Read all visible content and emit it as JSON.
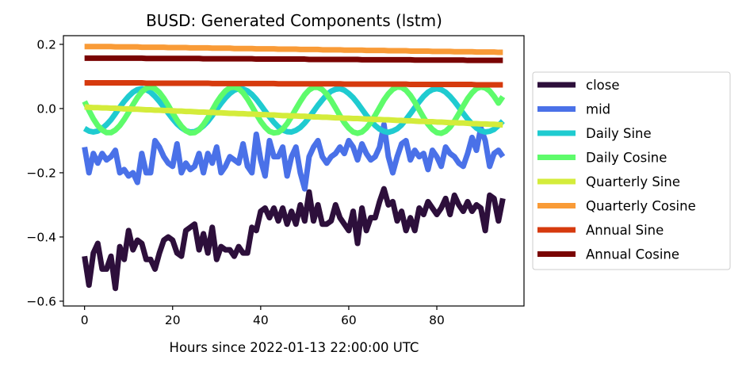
{
  "chart_data": {
    "type": "line",
    "title": "BUSD: Generated Components (lstm)",
    "xlabel": "Hours since 2022-01-13 22:00:00 UTC",
    "ylabel": "",
    "xlim": [
      -4.8,
      99.8
    ],
    "ylim": [
      -0.615,
      0.227
    ],
    "xticks": [
      0,
      20,
      40,
      60,
      80
    ],
    "xtick_labels": [
      "0",
      "20",
      "40",
      "60",
      "80"
    ],
    "yticks": [
      -0.6,
      -0.4,
      -0.2,
      0.0,
      0.2
    ],
    "ytick_labels": [
      "−0.6",
      "−0.4",
      "−0.2",
      "0.0",
      "0.2"
    ],
    "grid": false,
    "legend_position": "outside-right",
    "x": [
      0,
      1,
      2,
      3,
      4,
      5,
      6,
      7,
      8,
      9,
      10,
      11,
      12,
      13,
      14,
      15,
      16,
      17,
      18,
      19,
      20,
      21,
      22,
      23,
      24,
      25,
      26,
      27,
      28,
      29,
      30,
      31,
      32,
      33,
      34,
      35,
      36,
      37,
      38,
      39,
      40,
      41,
      42,
      43,
      44,
      45,
      46,
      47,
      48,
      49,
      50,
      51,
      52,
      53,
      54,
      55,
      56,
      57,
      58,
      59,
      60,
      61,
      62,
      63,
      64,
      65,
      66,
      67,
      68,
      69,
      70,
      71,
      72,
      73,
      74,
      75,
      76,
      77,
      78,
      79,
      80,
      81,
      82,
      83,
      84,
      85,
      86,
      87,
      88,
      89,
      90,
      91,
      92,
      93,
      94,
      95
    ],
    "series": [
      {
        "name": "close",
        "color": "#2d0f3b",
        "values": [
          -0.46,
          -0.55,
          -0.45,
          -0.42,
          -0.5,
          -0.5,
          -0.46,
          -0.56,
          -0.43,
          -0.47,
          -0.38,
          -0.44,
          -0.41,
          -0.42,
          -0.47,
          -0.47,
          -0.5,
          -0.45,
          -0.41,
          -0.4,
          -0.41,
          -0.45,
          -0.46,
          -0.38,
          -0.37,
          -0.36,
          -0.44,
          -0.39,
          -0.45,
          -0.37,
          -0.47,
          -0.43,
          -0.44,
          -0.44,
          -0.46,
          -0.43,
          -0.45,
          -0.45,
          -0.37,
          -0.38,
          -0.32,
          -0.31,
          -0.34,
          -0.31,
          -0.35,
          -0.31,
          -0.36,
          -0.32,
          -0.36,
          -0.3,
          -0.35,
          -0.26,
          -0.35,
          -0.3,
          -0.36,
          -0.36,
          -0.35,
          -0.3,
          -0.34,
          -0.36,
          -0.38,
          -0.32,
          -0.42,
          -0.31,
          -0.38,
          -0.34,
          -0.34,
          -0.29,
          -0.25,
          -0.3,
          -0.29,
          -0.35,
          -0.32,
          -0.38,
          -0.34,
          -0.38,
          -0.31,
          -0.33,
          -0.29,
          -0.31,
          -0.33,
          -0.31,
          -0.28,
          -0.33,
          -0.27,
          -0.3,
          -0.32,
          -0.29,
          -0.32,
          -0.3,
          -0.31,
          -0.38,
          -0.27,
          -0.28,
          -0.35,
          -0.28
        ]
      },
      {
        "name": "mid",
        "color": "#4a71e8",
        "values": [
          -0.12,
          -0.2,
          -0.14,
          -0.17,
          -0.14,
          -0.16,
          -0.15,
          -0.13,
          -0.2,
          -0.19,
          -0.21,
          -0.2,
          -0.23,
          -0.14,
          -0.2,
          -0.2,
          -0.1,
          -0.12,
          -0.15,
          -0.17,
          -0.18,
          -0.11,
          -0.2,
          -0.17,
          -0.19,
          -0.18,
          -0.14,
          -0.2,
          -0.14,
          -0.17,
          -0.12,
          -0.2,
          -0.18,
          -0.15,
          -0.16,
          -0.17,
          -0.11,
          -0.18,
          -0.2,
          -0.08,
          -0.16,
          -0.21,
          -0.1,
          -0.15,
          -0.15,
          -0.12,
          -0.21,
          -0.15,
          -0.12,
          -0.2,
          -0.25,
          -0.15,
          -0.12,
          -0.1,
          -0.15,
          -0.17,
          -0.15,
          -0.14,
          -0.12,
          -0.14,
          -0.1,
          -0.12,
          -0.16,
          -0.11,
          -0.14,
          -0.16,
          -0.15,
          -0.12,
          -0.05,
          -0.15,
          -0.2,
          -0.15,
          -0.11,
          -0.1,
          -0.16,
          -0.13,
          -0.15,
          -0.14,
          -0.19,
          -0.13,
          -0.15,
          -0.18,
          -0.12,
          -0.14,
          -0.15,
          -0.17,
          -0.18,
          -0.14,
          -0.09,
          -0.13,
          -0.06,
          -0.1,
          -0.18,
          -0.14,
          -0.13,
          -0.15
        ]
      },
      {
        "name": "Daily Sine",
        "color": "#1fcbd0",
        "values": [
          -0.062,
          -0.07,
          -0.073,
          -0.07,
          -0.062,
          -0.05,
          -0.035,
          -0.016,
          0.004,
          0.022,
          0.038,
          0.051,
          0.059,
          0.062,
          0.059,
          0.051,
          0.038,
          0.022,
          0.004,
          -0.014,
          -0.032,
          -0.048,
          -0.06,
          -0.069,
          -0.073,
          -0.072,
          -0.065,
          -0.054,
          -0.04,
          -0.022,
          -0.003,
          0.016,
          0.033,
          0.047,
          0.057,
          0.062,
          0.061,
          0.055,
          0.044,
          0.029,
          0.011,
          -0.008,
          -0.026,
          -0.043,
          -0.057,
          -0.067,
          -0.072,
          -0.073,
          -0.068,
          -0.059,
          -0.045,
          -0.028,
          -0.009,
          0.01,
          0.027,
          0.043,
          0.054,
          0.06,
          0.062,
          0.057,
          0.047,
          0.034,
          0.017,
          -0.002,
          -0.021,
          -0.038,
          -0.053,
          -0.064,
          -0.071,
          -0.074,
          -0.07,
          -0.063,
          -0.051,
          -0.034,
          -0.016,
          0.003,
          0.021,
          0.038,
          0.051,
          0.059,
          0.062,
          0.059,
          0.051,
          0.038,
          0.022,
          0.004,
          -0.015,
          -0.033,
          -0.048,
          -0.061,
          -0.069,
          -0.073,
          -0.071,
          -0.065,
          -0.053,
          -0.039
        ]
      },
      {
        "name": "Daily Cosine",
        "color": "#5efb6b",
        "values": [
          0.022,
          -0.006,
          -0.032,
          -0.053,
          -0.067,
          -0.075,
          -0.075,
          -0.067,
          -0.053,
          -0.034,
          -0.012,
          0.012,
          0.034,
          0.052,
          0.063,
          0.067,
          0.062,
          0.05,
          0.032,
          0.01,
          -0.014,
          -0.036,
          -0.055,
          -0.069,
          -0.076,
          -0.075,
          -0.066,
          -0.05,
          -0.029,
          -0.005,
          0.019,
          0.039,
          0.055,
          0.065,
          0.067,
          0.062,
          0.049,
          0.03,
          0.007,
          -0.017,
          -0.04,
          -0.058,
          -0.071,
          -0.076,
          -0.074,
          -0.064,
          -0.047,
          -0.025,
          -0.001,
          0.022,
          0.043,
          0.058,
          0.066,
          0.066,
          0.059,
          0.045,
          0.025,
          0.002,
          -0.022,
          -0.044,
          -0.061,
          -0.073,
          -0.077,
          -0.073,
          -0.061,
          -0.043,
          -0.021,
          0.003,
          0.027,
          0.046,
          0.06,
          0.067,
          0.066,
          0.057,
          0.041,
          0.02,
          -0.004,
          -0.028,
          -0.049,
          -0.065,
          -0.075,
          -0.077,
          -0.071,
          -0.058,
          -0.039,
          -0.016,
          0.008,
          0.031,
          0.049,
          0.062,
          0.067,
          0.064,
          0.055,
          0.038,
          0.017,
          0.037
        ]
      },
      {
        "name": "Quarterly Sine",
        "color": "#d4ec3b",
        "values": [
          0.005,
          0.004,
          0.003,
          0.003,
          0.002,
          0.002,
          0.001,
          0.001,
          0.0,
          -0.001,
          -0.001,
          -0.002,
          -0.002,
          -0.003,
          -0.004,
          -0.004,
          -0.005,
          -0.005,
          -0.006,
          -0.006,
          -0.007,
          -0.008,
          -0.008,
          -0.009,
          -0.009,
          -0.01,
          -0.011,
          -0.011,
          -0.012,
          -0.012,
          -0.013,
          -0.013,
          -0.014,
          -0.015,
          -0.015,
          -0.016,
          -0.016,
          -0.017,
          -0.017,
          -0.018,
          -0.019,
          -0.019,
          -0.02,
          -0.02,
          -0.021,
          -0.022,
          -0.022,
          -0.023,
          -0.023,
          -0.024,
          -0.024,
          -0.025,
          -0.026,
          -0.026,
          -0.027,
          -0.027,
          -0.028,
          -0.029,
          -0.029,
          -0.03,
          -0.03,
          -0.031,
          -0.031,
          -0.032,
          -0.033,
          -0.033,
          -0.034,
          -0.034,
          -0.035,
          -0.035,
          -0.036,
          -0.037,
          -0.037,
          -0.038,
          -0.038,
          -0.039,
          -0.04,
          -0.04,
          -0.041,
          -0.041,
          -0.042,
          -0.042,
          -0.043,
          -0.044,
          -0.044,
          -0.045,
          -0.045,
          -0.046,
          -0.047,
          -0.047,
          -0.048,
          -0.048,
          -0.049,
          -0.049,
          -0.05,
          -0.051
        ]
      },
      {
        "name": "Quarterly Cosine",
        "color": "#f99b37",
        "values": [
          0.193,
          0.193,
          0.193,
          0.193,
          0.193,
          0.193,
          0.193,
          0.192,
          0.192,
          0.192,
          0.192,
          0.192,
          0.192,
          0.191,
          0.191,
          0.191,
          0.191,
          0.191,
          0.191,
          0.19,
          0.19,
          0.19,
          0.19,
          0.19,
          0.189,
          0.189,
          0.189,
          0.189,
          0.189,
          0.188,
          0.188,
          0.188,
          0.188,
          0.188,
          0.187,
          0.187,
          0.187,
          0.187,
          0.187,
          0.186,
          0.186,
          0.186,
          0.186,
          0.186,
          0.185,
          0.185,
          0.185,
          0.185,
          0.185,
          0.184,
          0.184,
          0.184,
          0.184,
          0.184,
          0.183,
          0.183,
          0.183,
          0.183,
          0.183,
          0.182,
          0.182,
          0.182,
          0.182,
          0.182,
          0.181,
          0.181,
          0.181,
          0.181,
          0.181,
          0.18,
          0.18,
          0.18,
          0.18,
          0.18,
          0.179,
          0.179,
          0.179,
          0.179,
          0.179,
          0.178,
          0.178,
          0.178,
          0.178,
          0.178,
          0.177,
          0.177,
          0.177,
          0.177,
          0.177,
          0.176,
          0.176,
          0.176,
          0.176,
          0.176,
          0.175,
          0.175
        ]
      },
      {
        "name": "Annual Sine",
        "color": "#d63a0e",
        "values": [
          0.08,
          0.08,
          0.08,
          0.08,
          0.08,
          0.08,
          0.08,
          0.08,
          0.08,
          0.08,
          0.08,
          0.08,
          0.08,
          0.08,
          0.079,
          0.079,
          0.079,
          0.079,
          0.079,
          0.079,
          0.079,
          0.079,
          0.079,
          0.079,
          0.079,
          0.079,
          0.079,
          0.079,
          0.079,
          0.078,
          0.078,
          0.078,
          0.078,
          0.078,
          0.078,
          0.078,
          0.078,
          0.078,
          0.078,
          0.078,
          0.078,
          0.078,
          0.078,
          0.078,
          0.077,
          0.077,
          0.077,
          0.077,
          0.077,
          0.077,
          0.077,
          0.077,
          0.077,
          0.077,
          0.077,
          0.077,
          0.077,
          0.077,
          0.077,
          0.076,
          0.076,
          0.076,
          0.076,
          0.076,
          0.076,
          0.076,
          0.076,
          0.076,
          0.076,
          0.076,
          0.076,
          0.076,
          0.076,
          0.076,
          0.075,
          0.075,
          0.075,
          0.075,
          0.075,
          0.075,
          0.075,
          0.075,
          0.075,
          0.075,
          0.075,
          0.075,
          0.075,
          0.075,
          0.075,
          0.074,
          0.074,
          0.074,
          0.074,
          0.074,
          0.074,
          0.074
        ]
      },
      {
        "name": "Annual Cosine",
        "color": "#7a0403",
        "values": [
          0.157,
          0.157,
          0.157,
          0.157,
          0.157,
          0.157,
          0.157,
          0.157,
          0.157,
          0.157,
          0.157,
          0.157,
          0.157,
          0.157,
          0.156,
          0.156,
          0.156,
          0.156,
          0.156,
          0.156,
          0.156,
          0.156,
          0.156,
          0.156,
          0.156,
          0.156,
          0.156,
          0.155,
          0.155,
          0.155,
          0.155,
          0.155,
          0.155,
          0.155,
          0.155,
          0.155,
          0.155,
          0.155,
          0.155,
          0.154,
          0.154,
          0.154,
          0.154,
          0.154,
          0.154,
          0.154,
          0.154,
          0.154,
          0.154,
          0.154,
          0.154,
          0.153,
          0.153,
          0.153,
          0.153,
          0.153,
          0.153,
          0.153,
          0.153,
          0.153,
          0.153,
          0.153,
          0.153,
          0.152,
          0.152,
          0.152,
          0.152,
          0.152,
          0.152,
          0.152,
          0.152,
          0.152,
          0.152,
          0.152,
          0.152,
          0.151,
          0.151,
          0.151,
          0.151,
          0.151,
          0.151,
          0.151,
          0.151,
          0.151,
          0.151,
          0.151,
          0.151,
          0.15,
          0.15,
          0.15,
          0.15,
          0.15,
          0.15,
          0.15,
          0.15,
          0.15
        ]
      }
    ]
  }
}
